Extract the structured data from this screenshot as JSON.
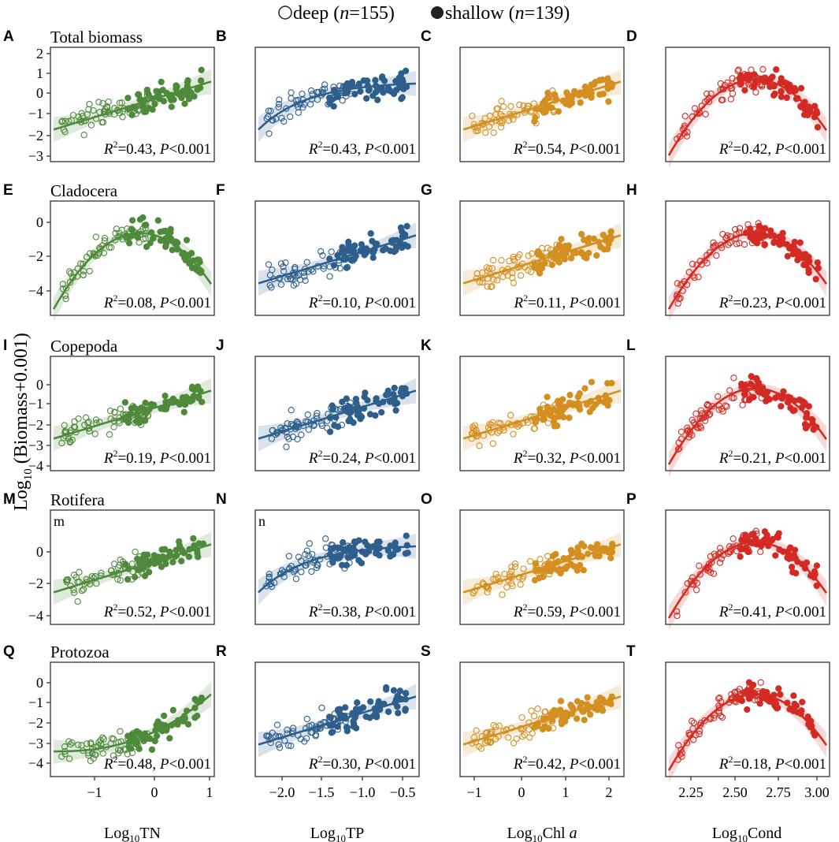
{
  "legend": {
    "deep_label": "deep (",
    "deep_n_label": "n",
    "deep_n_value": "=155)",
    "shallow_label": "shallow (",
    "shallow_n_label": "n",
    "shallow_n_value": "=139)"
  },
  "ylabel_main": "Log",
  "ylabel_sub": "10",
  "ylabel_rest": " (Biomass+0.001)",
  "x_columns": [
    {
      "main": "Log",
      "sub": "10",
      "rest": "TN",
      "italic": ""
    },
    {
      "main": "Log",
      "sub": "10",
      "rest": "TP",
      "italic": ""
    },
    {
      "main": "Log",
      "sub": "10",
      "rest": "Chl ",
      "italic": "a"
    },
    {
      "main": "Log",
      "sub": "10",
      "rest": "Cond",
      "italic": ""
    }
  ],
  "colors": {
    "TN": "#4f8a3c",
    "TP": "#2e5f8c",
    "Chl": "#d48f21",
    "Cond": "#d32b24"
  },
  "rows": [
    {
      "title": "Total biomass",
      "yticks": [
        "2",
        "1",
        "0",
        "−1",
        "−2",
        "−3"
      ]
    },
    {
      "title": "Cladocera",
      "yticks": [
        "0",
        "−2",
        "−4"
      ]
    },
    {
      "title": "Copepoda",
      "yticks": [
        "0",
        "−1",
        "−2",
        "−3",
        "−4"
      ]
    },
    {
      "title": "Rotifera",
      "yticks": [
        "0",
        "−2",
        "−4"
      ]
    },
    {
      "title": "Protozoa",
      "yticks": [
        "0",
        "−1",
        "−2",
        "−3",
        "−4"
      ]
    }
  ],
  "xticks": [
    [
      "−1",
      "0",
      "1"
    ],
    [
      "−2.0",
      "−1.5",
      "−1.0",
      "−0.5"
    ],
    [
      "−1",
      "0",
      "1",
      "2"
    ],
    [
      "2.25",
      "2.50",
      "2.75",
      "3.00"
    ]
  ],
  "panels": [
    {
      "letter": "A",
      "r2": "0.43",
      "p": "0.001",
      "corner": ""
    },
    {
      "letter": "B",
      "r2": "0.43",
      "p": "0.001",
      "corner": ""
    },
    {
      "letter": "C",
      "r2": "0.54",
      "p": "0.001",
      "corner": ""
    },
    {
      "letter": "D",
      "r2": "0.42",
      "p": "0.001",
      "corner": ""
    },
    {
      "letter": "E",
      "r2": "0.08",
      "p": "0.001",
      "corner": ""
    },
    {
      "letter": "F",
      "r2": "0.10",
      "p": "0.001",
      "corner": ""
    },
    {
      "letter": "G",
      "r2": "0.11",
      "p": "0.001",
      "corner": ""
    },
    {
      "letter": "H",
      "r2": "0.23",
      "p": "0.001",
      "corner": ""
    },
    {
      "letter": "I",
      "r2": "0.19",
      "p": "0.001",
      "corner": ""
    },
    {
      "letter": "J",
      "r2": "0.24",
      "p": "0.001",
      "corner": ""
    },
    {
      "letter": "K",
      "r2": "0.32",
      "p": "0.001",
      "corner": ""
    },
    {
      "letter": "L",
      "r2": "0.21",
      "p": "0.001",
      "corner": ""
    },
    {
      "letter": "M",
      "r2": "0.52",
      "p": "0.001",
      "corner": "m"
    },
    {
      "letter": "N",
      "r2": "0.38",
      "p": "0.001",
      "corner": "n"
    },
    {
      "letter": "O",
      "r2": "0.59",
      "p": "0.001",
      "corner": ""
    },
    {
      "letter": "P",
      "r2": "0.41",
      "p": "0.001",
      "corner": ""
    },
    {
      "letter": "Q",
      "r2": "0.48",
      "p": "0.001",
      "corner": ""
    },
    {
      "letter": "R",
      "r2": "0.30",
      "p": "0.001",
      "corner": ""
    },
    {
      "letter": "S",
      "r2": "0.42",
      "p": "0.001",
      "corner": ""
    },
    {
      "letter": "T",
      "r2": "0.18",
      "p": "0.001",
      "corner": ""
    }
  ]
}
